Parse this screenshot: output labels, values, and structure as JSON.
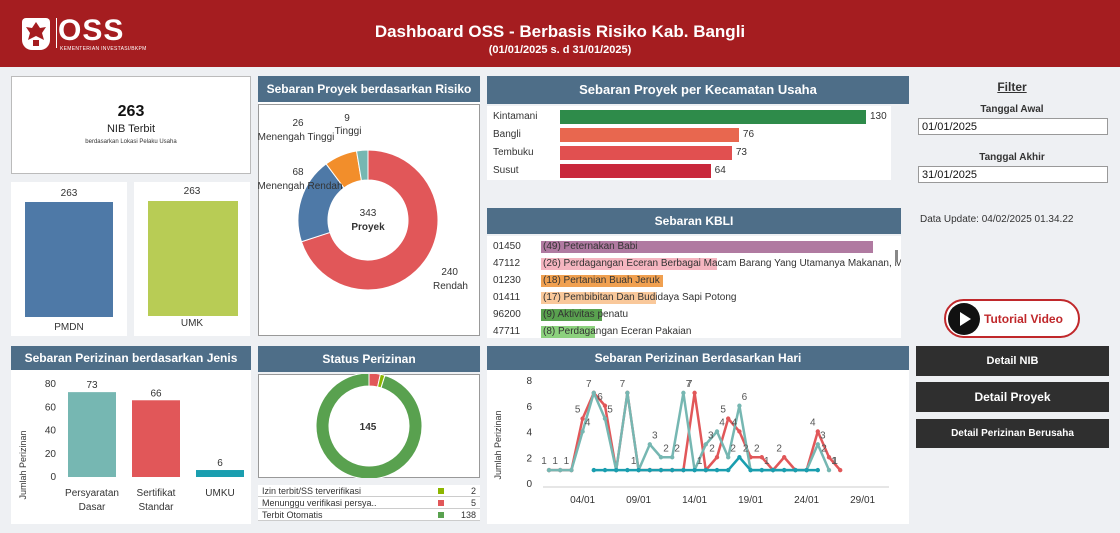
{
  "header": {
    "logo_text": "OSS",
    "logo_sub": "KEMENTERIAN INVESTASI/BKPM",
    "title": "Dashboard OSS - Berbasis Risiko Kab. Bangli",
    "subtitle": "(01/01/2025 s. d 31/01/2025)"
  },
  "nib": {
    "value": "263",
    "label": "NIB Terbit",
    "sub": "berdasarkan Lokasi Pelaku Usaha"
  },
  "nib_split": [
    {
      "label": "PMDN",
      "value": "263",
      "color": "#4e79a7"
    },
    {
      "label": "UMK",
      "value": "263",
      "color": "#b8cc55"
    }
  ],
  "risk_panel": {
    "title": "Sebaran Proyek berdasarkan Risiko",
    "center_value": "343",
    "center_label": "Proyek",
    "segments": [
      {
        "label": "Rendah",
        "value": 240,
        "color": "#e15759"
      },
      {
        "label": "Menengah Rendah",
        "value": 68,
        "color": "#4e79a7"
      },
      {
        "label": "Menengah Tinggi",
        "value": 26,
        "color": "#f28e2b"
      },
      {
        "label": "Tinggi",
        "value": 9,
        "color": "#76b7b2"
      }
    ]
  },
  "kecamatan_panel": {
    "title": "Sebaran Proyek per Kecamatan Usaha",
    "rows": [
      {
        "name": "Kintamani",
        "value": 130,
        "color": "#2e8b4a"
      },
      {
        "name": "Bangli",
        "value": 76,
        "color": "#e8674f"
      },
      {
        "name": "Tembuku",
        "value": 73,
        "color": "#e15050"
      },
      {
        "name": "Susut",
        "value": 64,
        "color": "#c9283c"
      }
    ]
  },
  "kbli_panel": {
    "title": "Sebaran  KBLI",
    "rows": [
      {
        "code": "01450",
        "text": "(49) Peternakan Babi",
        "value": 49,
        "color": "#b07aa1"
      },
      {
        "code": "47112",
        "text": "(26) Perdagangan Eceran Berbagai Macam Barang Yang Utamanya Makanan, M",
        "value": 26,
        "color": "#f5b5c0"
      },
      {
        "code": "01230",
        "text": "(18) Pertanian Buah Jeruk",
        "value": 18,
        "color": "#f0a050"
      },
      {
        "code": "01411",
        "text": "(17) Pembibitan Dan Budidaya Sapi Potong",
        "value": 17,
        "color": "#f9c89a"
      },
      {
        "code": "96200",
        "text": "(9) Aktivitas penatu",
        "value": 9,
        "color": "#59a14f"
      },
      {
        "code": "47711",
        "text": "(8) Perdagangan Eceran Pakaian",
        "value": 8,
        "color": "#8cd17d"
      }
    ]
  },
  "jenis_panel": {
    "title": "Sebaran Perizinan berdasarkan Jenis",
    "ylabel": "Jumlah Perizinan",
    "ylim": [
      0,
      80
    ],
    "ticks": [
      "0",
      "20",
      "40",
      "60",
      "80"
    ],
    "bars": [
      {
        "label1": "Persyaratan",
        "label2": "Dasar",
        "value": 73,
        "color": "#76b7b2"
      },
      {
        "label1": "Sertifikat",
        "label2": "Standar",
        "value": 66,
        "color": "#e15759"
      },
      {
        "label1": "UMKU",
        "label2": "",
        "value": 6,
        "color": "#1a9eaf"
      }
    ]
  },
  "status_panel": {
    "title": "Status Perizinan",
    "center_value": "145",
    "segments": [
      {
        "label": "Izin terbit/SS terverifikasi",
        "value": 2,
        "color": "#8db600"
      },
      {
        "label": "Menunggu verifikasi persya..",
        "value": 5,
        "color": "#e15759"
      },
      {
        "label": "Terbit Otomatis",
        "value": 138,
        "color": "#59a14f"
      }
    ]
  },
  "hari_panel": {
    "title": "Sebaran Perizinan Berdasarkan Hari",
    "ylabel": "Jumlah Perizinan",
    "ylim": [
      0,
      8
    ],
    "yticks": [
      "0",
      "2",
      "4",
      "6",
      "8"
    ],
    "xticks": [
      "04/01",
      "09/01",
      "14/01",
      "19/01",
      "24/01",
      "29/01"
    ],
    "chart_data": {
      "type": "line",
      "x": [
        1,
        2,
        3,
        4,
        5,
        6,
        7,
        8,
        9,
        10,
        11,
        12,
        13,
        14,
        15,
        16,
        17,
        18,
        19,
        20,
        21,
        22,
        23,
        24,
        25,
        26,
        27,
        28,
        29,
        30,
        31
      ],
      "series": [
        {
          "color": "#e15759",
          "values": [
            1,
            1,
            1,
            5,
            7,
            6,
            1,
            7,
            1,
            1,
            1,
            1,
            1,
            7,
            1,
            2,
            5,
            4,
            2,
            2,
            1,
            2,
            1,
            1,
            4,
            2,
            1,
            null,
            null,
            null,
            null
          ]
        },
        {
          "color": "#76b7b2",
          "values": [
            1,
            1,
            1,
            4,
            7,
            5,
            1,
            7,
            1,
            3,
            2,
            2,
            7,
            1,
            3,
            4,
            2,
            6,
            1,
            1,
            1,
            1,
            1,
            1,
            3,
            1,
            null,
            null,
            null,
            null,
            null
          ]
        },
        {
          "color": "#1a9eaf",
          "values": [
            null,
            null,
            null,
            null,
            1,
            1,
            1,
            1,
            1,
            1,
            1,
            1,
            1,
            1,
            1,
            1,
            1,
            2,
            1,
            1,
            1,
            1,
            1,
            1,
            1,
            null,
            null,
            null,
            null,
            null,
            null
          ]
        }
      ]
    }
  },
  "filter": {
    "title": "Filter",
    "start_label": "Tanggal Awal",
    "start_value": "01/01/2025",
    "end_label": "Tanggal Akhir",
    "end_value": "31/01/2025",
    "data_update": "Data Update: 04/02/2025 01.34.22"
  },
  "buttons": {
    "tutorial": "Tutorial Video",
    "detail_nib": "Detail NIB",
    "detail_proyek": "Detail Proyek",
    "detail_perizinan": "Detail Perizinan Berusaha"
  }
}
